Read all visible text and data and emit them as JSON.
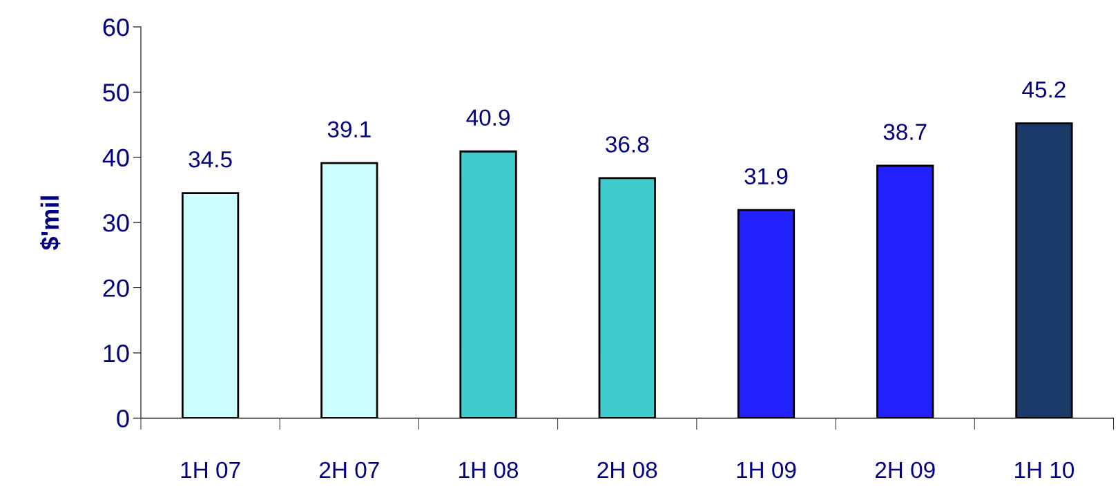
{
  "chart_data": {
    "type": "bar",
    "ylabel": "$'mil",
    "categories": [
      "1H 07",
      "2H 07",
      "1H 08",
      "2H 08",
      "1H 09",
      "2H 09",
      "1H 10"
    ],
    "values": [
      34.5,
      39.1,
      40.9,
      36.8,
      31.9,
      38.7,
      45.2
    ],
    "colors": [
      "#ccffff",
      "#ccffff",
      "#40cccc",
      "#40cccc",
      "#2222ff",
      "#2222ff",
      "#1a3a6a"
    ],
    "ylim": [
      0,
      60
    ],
    "yticks": [
      0,
      10,
      20,
      30,
      40,
      50,
      60
    ],
    "data_labels": true,
    "grid": false,
    "legend": false
  }
}
